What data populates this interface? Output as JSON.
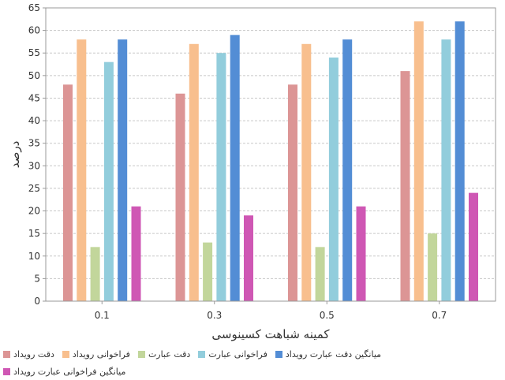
{
  "chart_data": {
    "type": "bar",
    "title": "",
    "xlabel": "کمینه شباهت کسینوسی",
    "ylabel": "درصد",
    "ylim": [
      0,
      65
    ],
    "yticks": [
      0,
      5,
      10,
      15,
      20,
      25,
      30,
      35,
      40,
      45,
      50,
      55,
      60,
      65
    ],
    "categories": [
      "0.1",
      "0.3",
      "0.5",
      "0.7"
    ],
    "grid": true,
    "legend_position": "bottom",
    "series": [
      {
        "name": "دقت رویداد",
        "color": "#dc9595",
        "values": [
          48,
          46,
          48,
          51
        ]
      },
      {
        "name": "فراخوانی رویداد",
        "color": "#f8bf8e",
        "values": [
          58,
          57,
          57,
          62
        ]
      },
      {
        "name": "دقت عبارت",
        "color": "#c2d69b",
        "values": [
          12,
          13,
          12,
          15
        ]
      },
      {
        "name": "فراخوانی عبارت",
        "color": "#92cddc",
        "values": [
          53,
          55,
          54,
          58
        ]
      },
      {
        "name": "میانگین دقت عبارت رویداد",
        "color": "#538dd5",
        "values": [
          58,
          59,
          58,
          62
        ]
      },
      {
        "name": "میانگین فراخوانی عبارت رویداد",
        "color": "#cf57b4",
        "values": [
          21,
          19,
          21,
          24
        ]
      }
    ]
  }
}
